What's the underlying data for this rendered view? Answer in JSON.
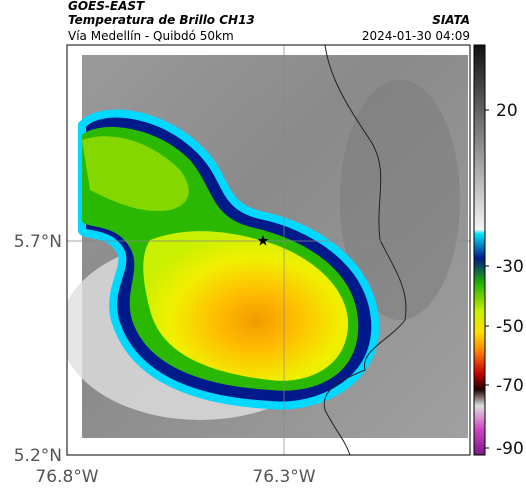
{
  "header": {
    "title": "GOES-EAST",
    "subtitle": "Temperatura de Brillo CH13",
    "location": "Vía Medellín - Quibdó 50km",
    "source": "SIATA",
    "datetime": "2024-01-30 04:09"
  },
  "map": {
    "lat_ticks": [
      "5.7°N",
      "5.2°N"
    ],
    "lon_ticks": [
      "76.8°W",
      "76.3°W"
    ]
  },
  "colorbar": {
    "ticks": [
      "20",
      "-30",
      "-50",
      "-70",
      "-90"
    ]
  }
}
